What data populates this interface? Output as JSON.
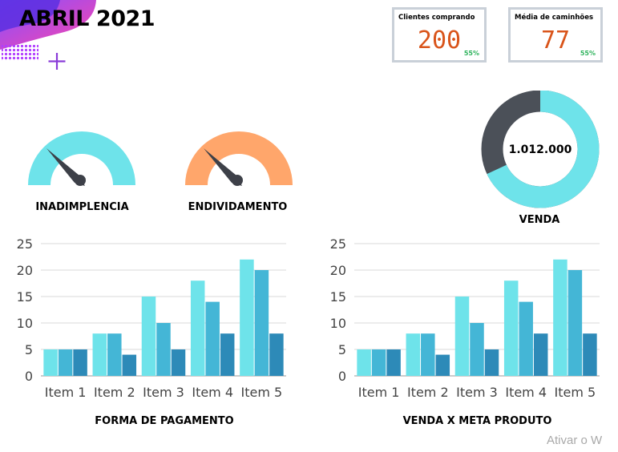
{
  "header": {
    "title": "ABRIL 2021"
  },
  "kpis": [
    {
      "label": "Clientes comprando",
      "value": "200",
      "percent": "55%"
    },
    {
      "label": "Média de caminhões",
      "value": "77",
      "percent": "55%"
    }
  ],
  "gauges": [
    {
      "label": "INADIMPLENCIA",
      "color": "#6ee3ea"
    },
    {
      "label": "ENDIVIDAMENTO",
      "color": "#ffa66b"
    }
  ],
  "donut": {
    "center_value": "1.012.000",
    "label": "VENDA",
    "filled_fraction": 0.68,
    "fill_color": "#6ee3ea",
    "rest_color": "#4b5058"
  },
  "chart_data": [
    {
      "type": "bar",
      "title": "FORMA DE PAGAMENTO",
      "categories": [
        "Item 1",
        "Item 2",
        "Item 3",
        "Item 4",
        "Item 5"
      ],
      "series": [
        {
          "values": [
            5,
            8,
            15,
            18,
            22
          ],
          "color": "#6ee3ea"
        },
        {
          "values": [
            5,
            8,
            10,
            14,
            20
          ],
          "color": "#44b6d6"
        },
        {
          "values": [
            5,
            4,
            5,
            8,
            8
          ],
          "color": "#2d8ab8"
        }
      ],
      "ylim": [
        0,
        25
      ],
      "yticks": [
        0,
        5,
        10,
        15,
        20,
        25
      ],
      "grid": true
    },
    {
      "type": "bar",
      "title": "VENDA X META PRODUTO",
      "categories": [
        "Item 1",
        "Item 2",
        "Item 3",
        "Item 4",
        "Item 5"
      ],
      "series": [
        {
          "values": [
            5,
            8,
            15,
            18,
            22
          ],
          "color": "#6ee3ea"
        },
        {
          "values": [
            5,
            8,
            10,
            14,
            20
          ],
          "color": "#44b6d6"
        },
        {
          "values": [
            5,
            4,
            5,
            8,
            8
          ],
          "color": "#2d8ab8"
        }
      ],
      "ylim": [
        0,
        25
      ],
      "yticks": [
        0,
        5,
        10,
        15,
        20,
        25
      ],
      "grid": true
    }
  ],
  "watermark": "Ativar o W"
}
